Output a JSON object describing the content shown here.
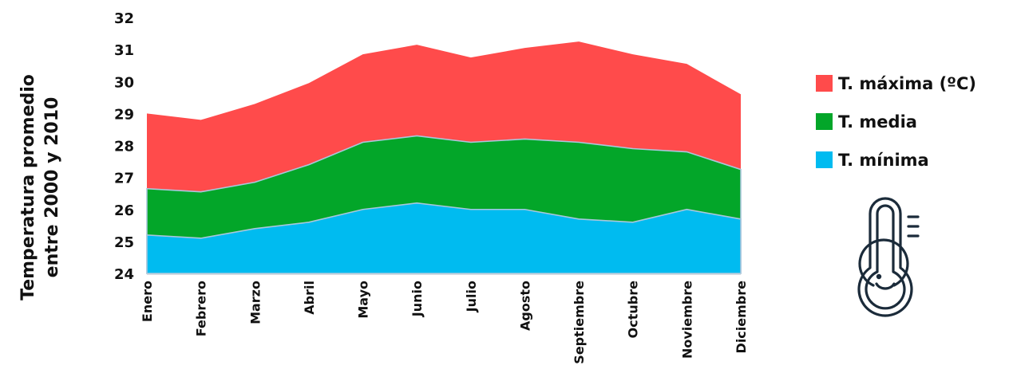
{
  "chart_data": {
    "type": "area",
    "stacked": false,
    "ylabel_line1": "Temperatura promedio",
    "ylabel_line2": "entre 2000 y 2010",
    "xlabel": "",
    "title": "",
    "ylim": [
      24,
      32
    ],
    "yticks": [
      24,
      25,
      26,
      27,
      28,
      29,
      30,
      31,
      32
    ],
    "categories": [
      "Enero",
      "Febrero",
      "Marzo",
      "Abril",
      "Mayo",
      "Junio",
      "Julio",
      "Agosto",
      "Septiembre",
      "Octubre",
      "Noviembre",
      "Diciembre"
    ],
    "series": [
      {
        "name": "T. máxima (ºC)",
        "color": "#ff4b4b",
        "values": [
          29.0,
          28.8,
          29.3,
          29.95,
          30.85,
          31.15,
          30.75,
          31.05,
          31.25,
          30.85,
          30.55,
          29.6
        ]
      },
      {
        "name": "T. media",
        "color": "#03a629",
        "values": [
          26.65,
          26.55,
          26.85,
          27.4,
          28.1,
          28.3,
          28.1,
          28.2,
          28.1,
          27.9,
          27.8,
          27.25
        ]
      },
      {
        "name": "T. mínima",
        "color": "#00bbf0",
        "values": [
          25.2,
          25.1,
          25.4,
          25.6,
          26.0,
          26.2,
          26.0,
          26.0,
          25.7,
          25.6,
          26.0,
          25.7
        ]
      }
    ],
    "grid": false,
    "legend_position": "right",
    "icon": "thermometer-icon"
  }
}
